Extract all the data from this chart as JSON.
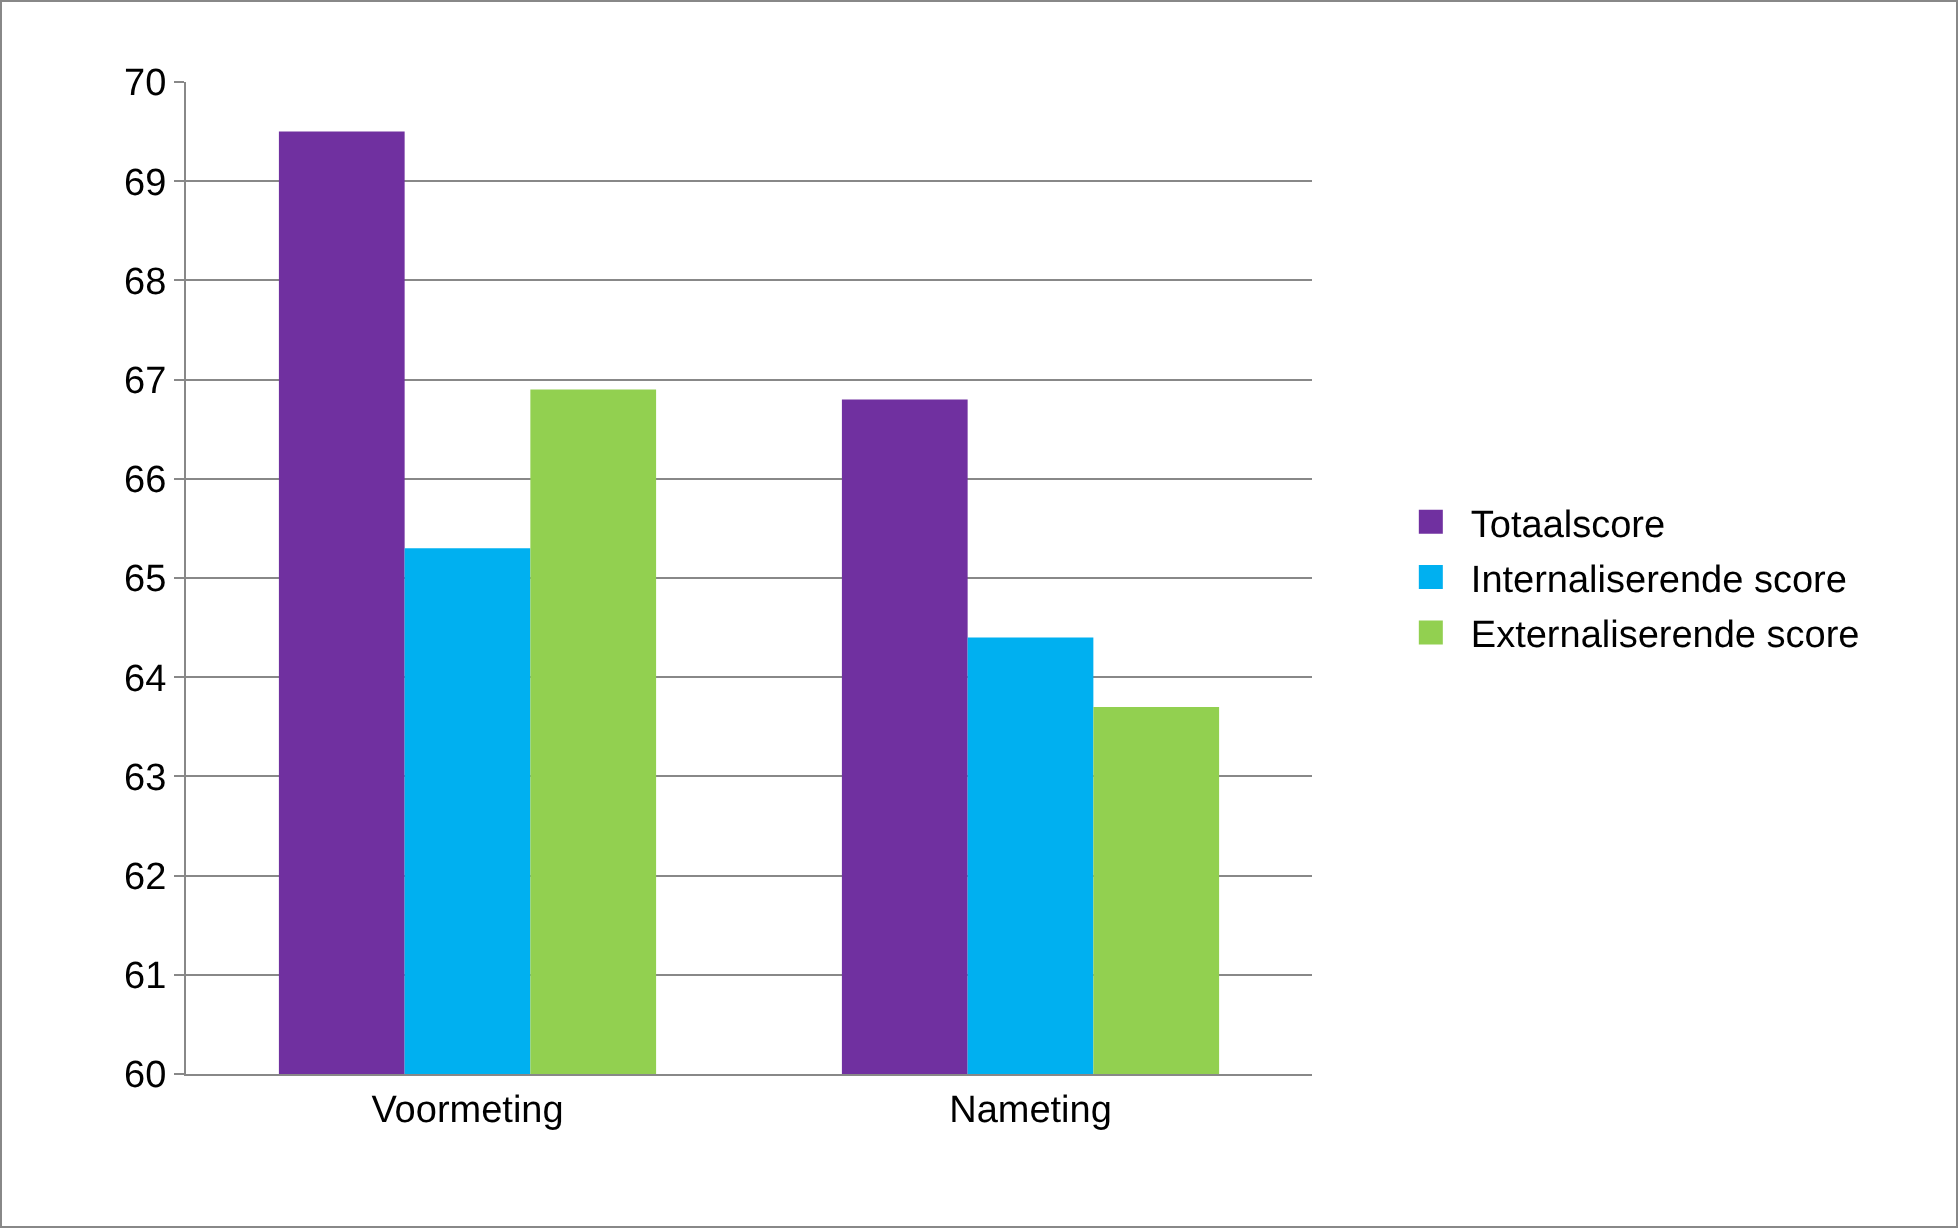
{
  "chart_data": {
    "type": "bar",
    "categories": [
      "Voormeting",
      "Nameting"
    ],
    "series": [
      {
        "name": "Totaalscore",
        "color": "#7030a0",
        "values": [
          69.5,
          66.8
        ]
      },
      {
        "name": "Internaliserende score",
        "color": "#00b0f0",
        "values": [
          65.3,
          64.4
        ]
      },
      {
        "name": "Externaliserende score",
        "color": "#92d050",
        "values": [
          66.9,
          63.7
        ]
      }
    ],
    "ylim": [
      60,
      70
    ],
    "yticks": [
      60,
      61,
      62,
      63,
      64,
      65,
      66,
      67,
      68,
      69,
      70
    ],
    "grid": "y",
    "legend": "right"
  }
}
